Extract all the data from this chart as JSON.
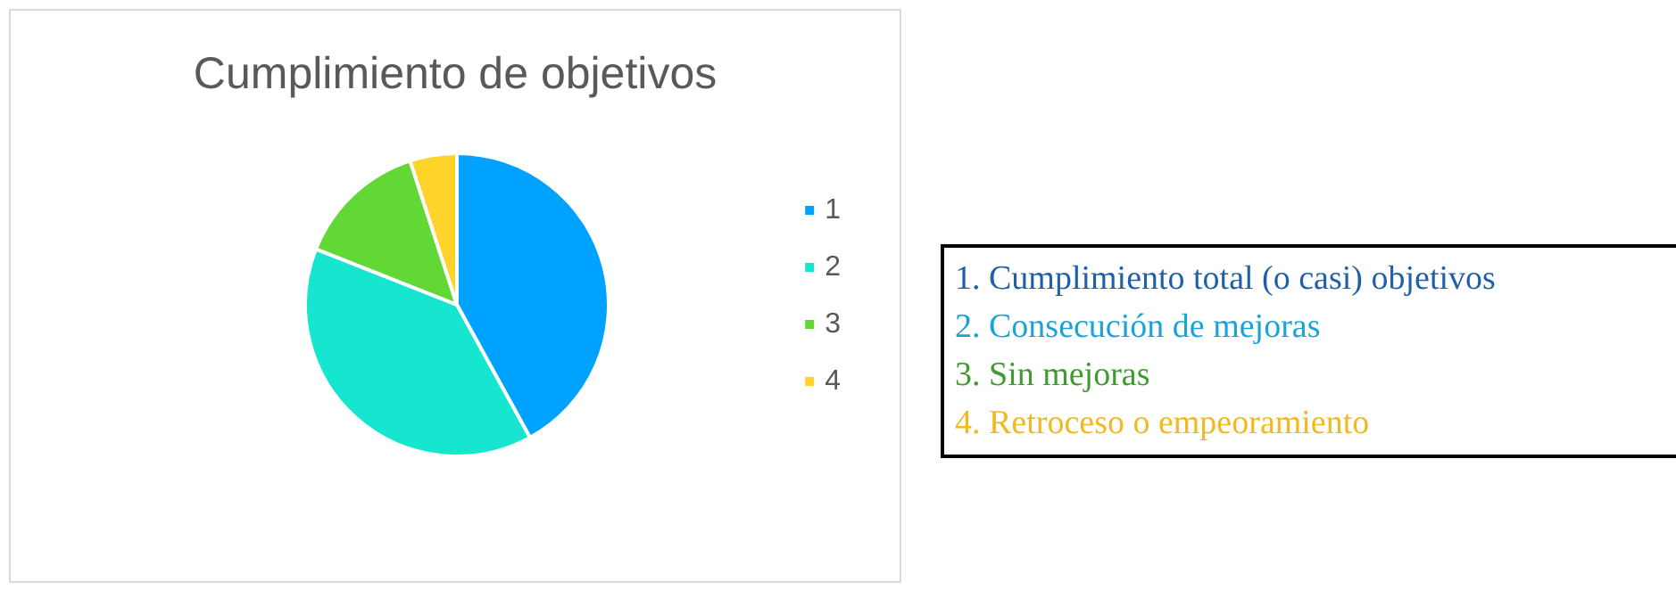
{
  "chart_data": {
    "type": "pie",
    "title": "Cumplimiento de objetivos",
    "categories": [
      "1",
      "2",
      "3",
      "4"
    ],
    "values": [
      42,
      39,
      14,
      5
    ],
    "colors": [
      "#00a2ff",
      "#16e6d0",
      "#61d836",
      "#ffd42a"
    ],
    "legend": "right",
    "annotations": [
      "1. Cumplimiento total (o casi) objetivos",
      "2. Consecución de mejoras",
      "3. Sin mejoras",
      "4. Retroceso o empeoramiento"
    ]
  }
}
